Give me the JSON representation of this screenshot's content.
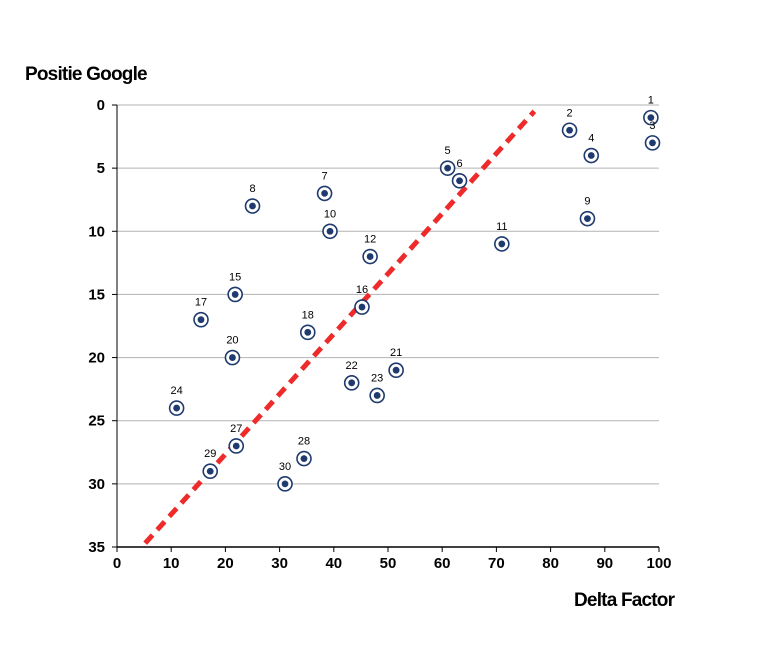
{
  "chart_data": {
    "type": "scatter",
    "xlabel": "Delta Factor",
    "ylabel": "Positie Google",
    "xlim": [
      0,
      100
    ],
    "ylim": [
      0,
      35
    ],
    "y_reversed": true,
    "grid": "horizontal",
    "x_ticks": [
      "0",
      "10",
      "20",
      "30",
      "40",
      "50",
      "60",
      "70",
      "80",
      "90",
      "100"
    ],
    "y_ticks": [
      "0",
      "5",
      "10",
      "15",
      "20",
      "25",
      "30",
      "35"
    ],
    "marker_color": "#1f3a6e",
    "points": [
      {
        "label": "1",
        "x": 98.5,
        "y": 1
      },
      {
        "label": "2",
        "x": 83.5,
        "y": 2
      },
      {
        "label": "3",
        "x": 98.8,
        "y": 3
      },
      {
        "label": "4",
        "x": 87.5,
        "y": 4
      },
      {
        "label": "5",
        "x": 61,
        "y": 5
      },
      {
        "label": "6",
        "x": 63.2,
        "y": 6
      },
      {
        "label": "7",
        "x": 38.3,
        "y": 7
      },
      {
        "label": "8",
        "x": 25,
        "y": 8
      },
      {
        "label": "9",
        "x": 86.8,
        "y": 9
      },
      {
        "label": "10",
        "x": 39.3,
        "y": 10
      },
      {
        "label": "11",
        "x": 71,
        "y": 11
      },
      {
        "label": "12",
        "x": 46.7,
        "y": 12
      },
      {
        "label": "15",
        "x": 21.8,
        "y": 15
      },
      {
        "label": "16",
        "x": 45.2,
        "y": 16
      },
      {
        "label": "17",
        "x": 15.5,
        "y": 17
      },
      {
        "label": "18",
        "x": 35.2,
        "y": 18
      },
      {
        "label": "20",
        "x": 21.3,
        "y": 20
      },
      {
        "label": "21",
        "x": 51.5,
        "y": 21
      },
      {
        "label": "22",
        "x": 43.3,
        "y": 22
      },
      {
        "label": "23",
        "x": 48,
        "y": 23
      },
      {
        "label": "24",
        "x": 11,
        "y": 24
      },
      {
        "label": "27",
        "x": 22,
        "y": 27
      },
      {
        "label": "28",
        "x": 34.5,
        "y": 28
      },
      {
        "label": "29",
        "x": 17.2,
        "y": 29
      },
      {
        "label": "30",
        "x": 31,
        "y": 30
      }
    ],
    "trendline": {
      "style": "dashed",
      "color": "#ee2b2b",
      "from": {
        "x": 5.2,
        "y": 34.7
      },
      "to": {
        "x": 77,
        "y": 0.5
      }
    }
  }
}
